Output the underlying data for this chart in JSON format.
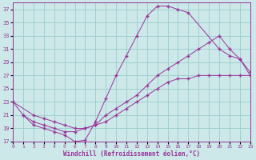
{
  "xlabel": "Windchill (Refroidissement éolien,°C)",
  "background_color": "#cce8e8",
  "grid_color": "#99cccc",
  "line_color": "#993399",
  "xlim": [
    0,
    23
  ],
  "ylim": [
    17,
    38
  ],
  "xticks": [
    0,
    1,
    2,
    3,
    4,
    5,
    6,
    7,
    8,
    9,
    10,
    11,
    12,
    13,
    14,
    15,
    16,
    17,
    18,
    19,
    20,
    21,
    22,
    23
  ],
  "yticks": [
    17,
    19,
    21,
    23,
    25,
    27,
    29,
    31,
    33,
    35,
    37
  ],
  "curve1_x": [
    0,
    1,
    2,
    3,
    4,
    5,
    6,
    7,
    8,
    9,
    10,
    11,
    12,
    13,
    14,
    15,
    16,
    17,
    20,
    21,
    22,
    23
  ],
  "curve1_y": [
    23,
    21,
    19.5,
    19,
    18.5,
    18,
    17,
    17.2,
    20,
    23.5,
    27,
    30,
    33,
    36,
    37.5,
    37.5,
    37,
    36.5,
    31,
    30,
    29.5,
    27.5
  ],
  "curve2_x": [
    0,
    2,
    3,
    4,
    5,
    6,
    7,
    8,
    9,
    10,
    11,
    12,
    13,
    14,
    15,
    16,
    17,
    18,
    19,
    20,
    21,
    22,
    23
  ],
  "curve2_y": [
    23,
    21,
    20.5,
    20,
    19.5,
    19,
    19,
    19.5,
    21,
    22,
    23,
    24,
    25.5,
    27,
    28,
    29,
    30,
    31,
    32,
    33,
    31,
    29.5,
    27
  ],
  "curve3_x": [
    1,
    2,
    3,
    4,
    5,
    6,
    7,
    8,
    9,
    10,
    11,
    12,
    13,
    14,
    15,
    16,
    17,
    18,
    19,
    20,
    21,
    22,
    23
  ],
  "curve3_y": [
    21,
    20,
    19.5,
    19,
    18.5,
    18.5,
    19,
    19.5,
    20,
    21,
    22,
    23,
    24,
    25,
    26,
    26.5,
    26.5,
    27,
    27,
    27,
    27,
    27,
    27
  ]
}
